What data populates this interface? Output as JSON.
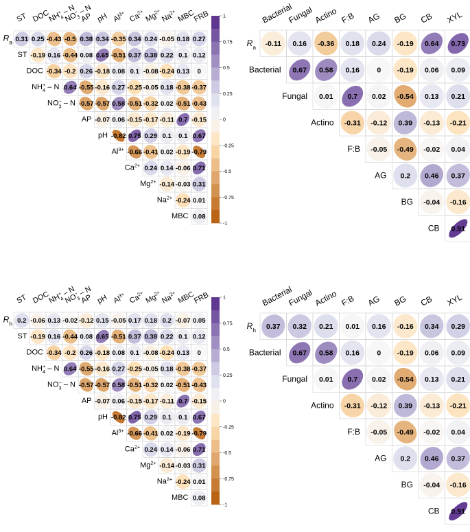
{
  "palette": {
    "neg_strong": "#b35806",
    "neg_light": "#fee0b6",
    "mid": "#f7f7f7",
    "pos_light": "#d8daeb",
    "pos_strong": "#542788",
    "grid": "#d0d0d0",
    "text": "#000000"
  },
  "chart_data": [
    {
      "type": "heatmap",
      "id": "top-left",
      "row_label": "Ra",
      "row_label_base": "R",
      "row_label_sub": "a",
      "variables": [
        "ST",
        "DOC",
        "NH4+ - N",
        "NO3- - N",
        "AP",
        "pH",
        "Al3+",
        "Ca2+",
        "Mg2+",
        "Na2+",
        "MBC",
        "FRB"
      ],
      "variable_labels": [
        {
          "base": "ST",
          "sup": "",
          "tail": ""
        },
        {
          "base": "DOC",
          "sup": "",
          "tail": ""
        },
        {
          "base": "NH",
          "sup": "+",
          "sub": "4",
          "tail": " – N"
        },
        {
          "base": "NO",
          "sup": "−",
          "sub": "3",
          "tail": " – N"
        },
        {
          "base": "AP",
          "sup": "",
          "tail": ""
        },
        {
          "base": "pH",
          "sup": "",
          "tail": ""
        },
        {
          "base": "Al",
          "sup": "3+",
          "tail": ""
        },
        {
          "base": "Ca",
          "sup": "2+",
          "tail": ""
        },
        {
          "base": "Mg",
          "sup": "2+",
          "tail": ""
        },
        {
          "base": "Na",
          "sup": "2+",
          "tail": ""
        },
        {
          "base": "MBC",
          "sup": "",
          "tail": ""
        },
        {
          "base": "FRB",
          "sup": "",
          "tail": ""
        }
      ],
      "first_row": [
        0.31,
        0.25,
        -0.43,
        -0.5,
        0.38,
        0.34,
        -0.35,
        0.34,
        0.24,
        -0.05,
        0.18,
        0.27
      ],
      "matrix": [
        [
          -0.19,
          0.16,
          -0.44,
          0.08,
          0.65,
          -0.51,
          0.37,
          0.38,
          0.22,
          0.1,
          0.12
        ],
        [
          -0.34,
          -0.2,
          0.26,
          -0.18,
          0.08,
          0.1,
          -0.08,
          -0.24,
          0.13,
          0
        ],
        [
          0.64,
          -0.55,
          -0.16,
          0.27,
          -0.25,
          -0.05,
          0.18,
          -0.38,
          -0.37
        ],
        [
          -0.57,
          -0.57,
          0.58,
          -0.51,
          -0.32,
          0.02,
          -0.51,
          -0.43
        ],
        [
          -0.07,
          0.06,
          -0.15,
          -0.17,
          -0.11,
          0.7,
          -0.15
        ],
        [
          -0.82,
          0.75,
          0.29,
          0.1,
          0.1,
          0.67
        ],
        [
          -0.66,
          -0.41,
          0.02,
          -0.19,
          -0.79
        ],
        [
          0.24,
          0.14,
          -0.06,
          0.71
        ],
        [
          -0.14,
          -0.03,
          0.31
        ],
        [
          -0.24,
          0.01
        ],
        [
          0.08
        ]
      ],
      "colorbar_ticks": [
        "1",
        "0.75",
        "0.5",
        "0.25",
        "0",
        "-0.25",
        "-0.5",
        "-0.75",
        "-1"
      ]
    },
    {
      "type": "heatmap",
      "id": "top-right",
      "row_label": "Ra",
      "row_label_base": "R",
      "row_label_sub": "a",
      "variables": [
        "Bacterial",
        "Fungal",
        "Actino",
        "F:B",
        "AG",
        "BG",
        "CB",
        "XYL"
      ],
      "first_row": [
        -0.11,
        0.16,
        -0.36,
        0.18,
        0.24,
        -0.19,
        0.64,
        0.73
      ],
      "matrix": [
        [
          0.67,
          0.58,
          0.16,
          0,
          -0.19,
          0.06,
          0.09
        ],
        [
          0.01,
          0.7,
          0.02,
          -0.54,
          0.13,
          0.21
        ],
        [
          -0.31,
          -0.12,
          0.39,
          -0.13,
          -0.21
        ],
        [
          -0.05,
          -0.49,
          -0.02,
          0.04
        ],
        [
          0.2,
          0.46,
          0.37
        ],
        [
          -0.04,
          -0.16
        ],
        [
          0.91
        ]
      ],
      "colorbar_ticks": [
        "1",
        "0.75",
        "0.5",
        "0.25",
        "0",
        "-0.25",
        "-0.5",
        "-0.75",
        "-1"
      ]
    },
    {
      "type": "heatmap",
      "id": "bottom-left",
      "row_label": "Rh",
      "row_label_base": "R",
      "row_label_sub": "h",
      "variables": [
        "ST",
        "DOC",
        "NH4+ - N",
        "NO3- - N",
        "AP",
        "pH",
        "Al3+",
        "Ca2+",
        "Mg2+",
        "Na2+",
        "MBC",
        "FRB"
      ],
      "variable_labels": [
        {
          "base": "ST",
          "sup": "",
          "tail": ""
        },
        {
          "base": "DOC",
          "sup": "",
          "tail": ""
        },
        {
          "base": "NH",
          "sup": "+",
          "sub": "4",
          "tail": " – N"
        },
        {
          "base": "NO",
          "sup": "−",
          "sub": "3",
          "tail": " – N"
        },
        {
          "base": "AP",
          "sup": "",
          "tail": ""
        },
        {
          "base": "pH",
          "sup": "",
          "tail": ""
        },
        {
          "base": "Al",
          "sup": "3+",
          "tail": ""
        },
        {
          "base": "Ca",
          "sup": "2+",
          "tail": ""
        },
        {
          "base": "Mg",
          "sup": "2+",
          "tail": ""
        },
        {
          "base": "Na",
          "sup": "2+",
          "tail": ""
        },
        {
          "base": "MBC",
          "sup": "",
          "tail": ""
        },
        {
          "base": "FRB",
          "sup": "",
          "tail": ""
        }
      ],
      "first_row": [
        0.2,
        -0.06,
        0.13,
        -0.02,
        -0.12,
        0.15,
        -0.05,
        0.17,
        0.18,
        0.2,
        -0.07,
        0.05
      ],
      "matrix": [
        [
          -0.19,
          0.16,
          -0.44,
          0.08,
          0.65,
          -0.51,
          0.37,
          0.38,
          0.22,
          0.1,
          0.12
        ],
        [
          -0.34,
          -0.2,
          0.26,
          -0.18,
          0.08,
          0.1,
          -0.08,
          -0.24,
          0.13,
          0
        ],
        [
          0.64,
          -0.55,
          -0.16,
          0.27,
          -0.25,
          -0.05,
          0.18,
          -0.38,
          -0.37
        ],
        [
          -0.57,
          -0.57,
          0.58,
          -0.51,
          -0.32,
          0.02,
          -0.51,
          -0.43
        ],
        [
          -0.07,
          0.06,
          -0.15,
          -0.17,
          -0.11,
          0.7,
          -0.15
        ],
        [
          -0.82,
          0.75,
          0.29,
          0.1,
          0.1,
          0.67
        ],
        [
          -0.66,
          -0.41,
          0.02,
          -0.19,
          -0.79
        ],
        [
          0.24,
          0.14,
          -0.06,
          0.71
        ],
        [
          -0.14,
          -0.03,
          0.31
        ],
        [
          -0.24,
          0.01
        ],
        [
          0.08
        ]
      ],
      "colorbar_ticks": [
        "1",
        "0.75",
        "0.5",
        "0.25",
        "0",
        "-0.25",
        "-0.5",
        "-0.75",
        "-1"
      ]
    },
    {
      "type": "heatmap",
      "id": "bottom-right",
      "row_label": "Rh",
      "row_label_base": "R",
      "row_label_sub": "h",
      "variables": [
        "Bacterial",
        "Fungal",
        "Actino",
        "F:B",
        "AG",
        "BG",
        "CB",
        "XYL"
      ],
      "first_row": [
        0.37,
        0.32,
        0.21,
        0.01,
        0.16,
        -0.16,
        0.34,
        0.29
      ],
      "matrix": [
        [
          0.67,
          0.58,
          0.16,
          0,
          -0.19,
          0.06,
          0.09
        ],
        [
          0.01,
          0.7,
          0.02,
          -0.54,
          0.13,
          0.21
        ],
        [
          -0.31,
          -0.12,
          0.39,
          -0.13,
          -0.21
        ],
        [
          -0.05,
          -0.49,
          -0.02,
          0.04
        ],
        [
          0.2,
          0.46,
          0.37
        ],
        [
          -0.04,
          -0.16
        ],
        [
          0.91
        ]
      ],
      "colorbar_ticks": [
        "1",
        "0.75",
        "0.5",
        "0.25",
        "0",
        "-0.25",
        "-0.5",
        "-0.75",
        "-1"
      ]
    }
  ]
}
